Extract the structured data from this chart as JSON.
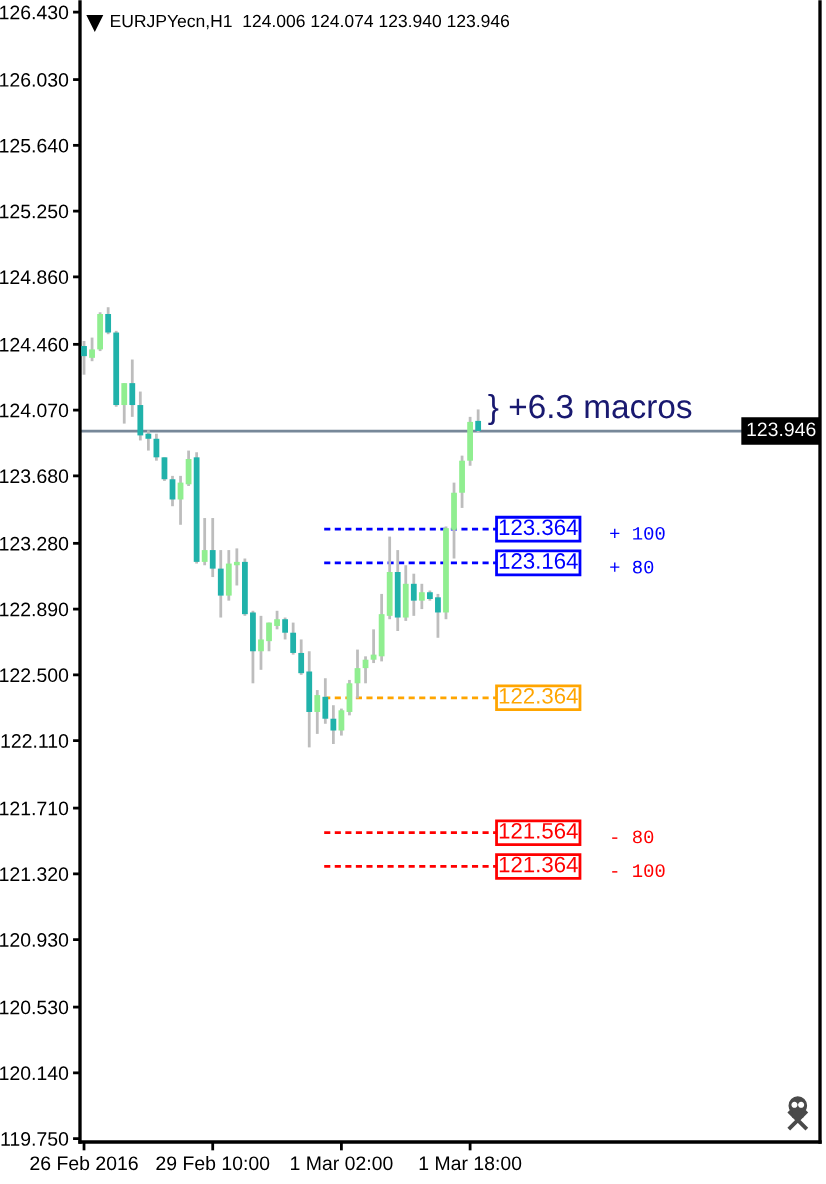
{
  "chart_data": {
    "type": "candlestick",
    "title": "EURJPYecn,H1  124.006 124.074 123.940 123.946",
    "categories": [
      "26 Feb 2016",
      null,
      null,
      null,
      null,
      null,
      null,
      null,
      null,
      null,
      null,
      null,
      null,
      null,
      null,
      null,
      "29 Feb 10:00",
      null,
      null,
      null,
      null,
      null,
      null,
      null,
      null,
      null,
      null,
      null,
      null,
      null,
      null,
      null,
      "1 Mar 02:00",
      null,
      null,
      null,
      null,
      null,
      null,
      null,
      null,
      null,
      null,
      null,
      null,
      null,
      null,
      null,
      "1 Mar 18:00",
      null
    ],
    "ohlc": [
      [
        124.45,
        124.48,
        124.28,
        124.39
      ],
      [
        124.38,
        124.5,
        124.36,
        124.43
      ],
      [
        124.43,
        124.65,
        124.42,
        124.64
      ],
      [
        124.64,
        124.68,
        124.52,
        124.53
      ],
      [
        124.53,
        124.54,
        124.09,
        124.1
      ],
      [
        124.1,
        124.23,
        123.99,
        124.23
      ],
      [
        124.23,
        124.37,
        124.03,
        124.1
      ],
      [
        124.1,
        124.18,
        123.89,
        123.92
      ],
      [
        123.93,
        123.95,
        123.83,
        123.9
      ],
      [
        123.9,
        123.93,
        123.77,
        123.79
      ],
      [
        123.79,
        123.79,
        123.65,
        123.66
      ],
      [
        123.66,
        123.68,
        123.5,
        123.54
      ],
      [
        123.54,
        123.68,
        123.39,
        123.64
      ],
      [
        123.63,
        123.83,
        123.62,
        123.78
      ],
      [
        123.79,
        123.82,
        123.16,
        123.17
      ],
      [
        123.17,
        123.43,
        123.15,
        123.24
      ],
      [
        123.24,
        123.43,
        123.08,
        123.13
      ],
      [
        123.13,
        123.24,
        122.84,
        122.97
      ],
      [
        122.97,
        123.24,
        122.94,
        123.16
      ],
      [
        123.15,
        123.25,
        123.03,
        123.17
      ],
      [
        123.17,
        123.19,
        122.85,
        122.86
      ],
      [
        122.87,
        122.88,
        122.45,
        122.64
      ],
      [
        122.64,
        122.85,
        122.53,
        122.71
      ],
      [
        122.7,
        122.81,
        122.64,
        122.81
      ],
      [
        122.79,
        122.88,
        122.77,
        122.83
      ],
      [
        122.83,
        122.84,
        122.71,
        122.75
      ],
      [
        122.75,
        122.81,
        122.62,
        122.63
      ],
      [
        122.63,
        122.71,
        122.5,
        122.51
      ],
      [
        122.52,
        122.64,
        122.07,
        122.28
      ],
      [
        122.28,
        122.41,
        122.15,
        122.38
      ],
      [
        122.37,
        122.48,
        122.21,
        122.24
      ],
      [
        122.24,
        122.32,
        122.09,
        122.17
      ],
      [
        122.17,
        122.3,
        122.14,
        122.29
      ],
      [
        122.28,
        122.47,
        122.26,
        122.45
      ],
      [
        122.45,
        122.65,
        122.36,
        122.54
      ],
      [
        122.54,
        122.61,
        122.45,
        122.59
      ],
      [
        122.59,
        122.77,
        122.57,
        122.62
      ],
      [
        122.61,
        122.98,
        122.58,
        122.86
      ],
      [
        122.85,
        123.32,
        122.83,
        123.11
      ],
      [
        123.11,
        123.24,
        122.76,
        122.84
      ],
      [
        122.84,
        123.15,
        122.82,
        123.04
      ],
      [
        123.04,
        123.1,
        122.85,
        122.94
      ],
      [
        122.94,
        123.04,
        122.89,
        122.99
      ],
      [
        122.99,
        123.0,
        122.94,
        122.95
      ],
      [
        122.96,
        122.98,
        122.72,
        122.87
      ],
      [
        122.87,
        123.38,
        122.83,
        123.37
      ],
      [
        123.36,
        123.64,
        123.19,
        123.58
      ],
      [
        123.58,
        123.8,
        123.49,
        123.77
      ],
      [
        123.77,
        124.03,
        123.74,
        124.0
      ],
      [
        124.006,
        124.074,
        123.94,
        123.946
      ]
    ],
    "colors": [
      "#20b2aa",
      "#90ee90",
      "#90ee90",
      "#20b2aa",
      "#20b2aa",
      "#90ee90",
      "#20b2aa",
      "#20b2aa",
      "#20b2aa",
      "#20b2aa",
      "#20b2aa",
      "#20b2aa",
      "#90ee90",
      "#90ee90",
      "#20b2aa",
      "#90ee90",
      "#20b2aa",
      "#20b2aa",
      "#90ee90",
      "#90ee90",
      "#20b2aa",
      "#20b2aa",
      "#90ee90",
      "#90ee90",
      "#90ee90",
      "#20b2aa",
      "#20b2aa",
      "#20b2aa",
      "#20b2aa",
      "#90ee90",
      "#20b2aa",
      "#20b2aa",
      "#90ee90",
      "#90ee90",
      "#90ee90",
      "#90ee90",
      "#90ee90",
      "#90ee90",
      "#90ee90",
      "#20b2aa",
      "#90ee90",
      "#20b2aa",
      "#90ee90",
      "#20b2aa",
      "#20b2aa",
      "#90ee90",
      "#90ee90",
      "#90ee90",
      "#90ee90",
      "#20b2aa"
    ],
    "ylim": [
      119.73,
      126.49
    ],
    "yticks": [
      {
        "value": 126.43,
        "label": "126.430"
      },
      {
        "value": 126.03,
        "label": "126.030"
      },
      {
        "value": 125.64,
        "label": "125.640"
      },
      {
        "value": 125.25,
        "label": "125.250"
      },
      {
        "value": 124.86,
        "label": "124.860"
      },
      {
        "value": 124.46,
        "label": "124.460"
      },
      {
        "value": 124.07,
        "label": "124.070"
      },
      {
        "value": 123.68,
        "label": "123.680"
      },
      {
        "value": 123.28,
        "label": "123.280"
      },
      {
        "value": 122.89,
        "label": "122.890"
      },
      {
        "value": 122.5,
        "label": "122.500"
      },
      {
        "value": 122.11,
        "label": "122.110"
      },
      {
        "value": 121.71,
        "label": "121.710"
      },
      {
        "value": 121.32,
        "label": "121.320"
      },
      {
        "value": 120.93,
        "label": "120.930"
      },
      {
        "value": 120.53,
        "label": "120.530"
      },
      {
        "value": 120.14,
        "label": "120.140"
      },
      {
        "value": 119.75,
        "label": "119.750"
      }
    ],
    "ref_lines": [
      {
        "axis": "y",
        "value": 123.946,
        "label": "123.946",
        "color": "#778899",
        "line_style": "solid"
      },
      {
        "axis": "y",
        "value": 122.364,
        "label": "122.364",
        "color": "#ffa500",
        "line_style": "dashed"
      },
      {
        "axis": "y",
        "value": 123.364,
        "label": "123.364",
        "color": "#0000ff",
        "line_style": "dashed"
      },
      {
        "axis": "y",
        "value": 123.164,
        "label": "123.164",
        "color": "#0000ff",
        "line_style": "dashed"
      },
      {
        "axis": "y",
        "value": 121.564,
        "label": "121.564",
        "color": "#ff0000",
        "line_style": "dashed"
      },
      {
        "axis": "y",
        "value": 121.364,
        "label": "121.364",
        "color": "#ff0000",
        "line_style": "dashed"
      }
    ],
    "annotations": [
      "} +6.3 macros",
      "+ 100",
      "+ 80",
      "- 80",
      "- 100"
    ]
  }
}
